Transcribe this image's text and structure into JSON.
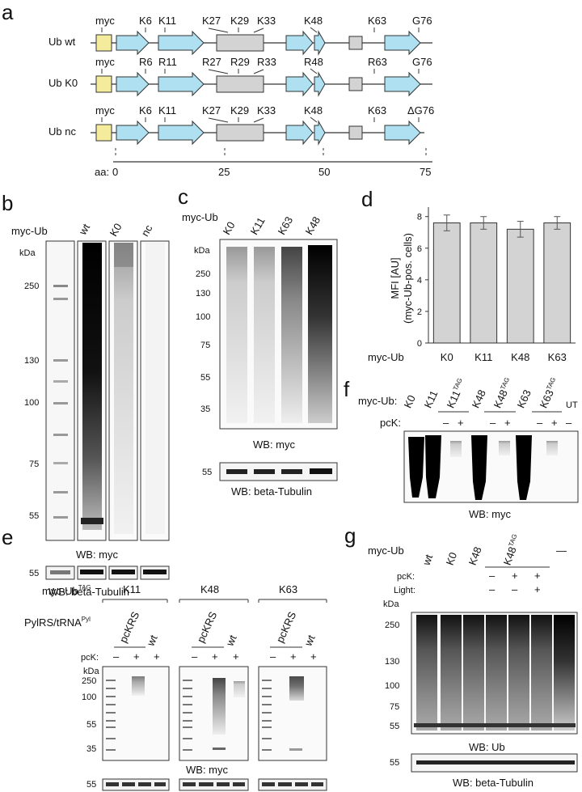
{
  "panels": {
    "a": {
      "letter": "a",
      "rows": [
        {
          "name": "Ub wt",
          "labels": [
            "myc",
            "K6",
            "K11",
            "K27",
            "K29",
            "K33",
            "K48",
            "K63",
            "G76"
          ]
        },
        {
          "name": "Ub K0",
          "labels": [
            "myc",
            "R6",
            "R11",
            "R27",
            "R29",
            "R33",
            "R48",
            "R63",
            "G76"
          ]
        },
        {
          "name": "Ub nc",
          "labels": [
            "myc",
            "K6",
            "K11",
            "K27",
            "K29",
            "K33",
            "K48",
            "K63",
            "ΔG76"
          ]
        }
      ],
      "aa_label": "aa:",
      "aa_ticks": [
        "0",
        "25",
        "50",
        "75"
      ]
    },
    "b": {
      "letter": "b",
      "myc_ub_label": "myc-Ub",
      "lanes": [
        "wt",
        "K0",
        "nc"
      ],
      "kda": "kDa",
      "markers": [
        "250",
        "130",
        "100",
        "75",
        "55"
      ],
      "wb1": "WB: myc",
      "tub_marker": "55",
      "wb2": "WB: beta-Tubulin"
    },
    "c": {
      "letter": "c",
      "myc_ub_label": "myc-Ub",
      "lanes": [
        "K0",
        "K11",
        "K63",
        "K48"
      ],
      "kda": "kDa",
      "markers": [
        "250",
        "130",
        "100",
        "75",
        "55",
        "35"
      ],
      "wb1": "WB: myc",
      "tub_marker": "55",
      "wb2": "WB: beta-Tubulin"
    },
    "d": {
      "letter": "d",
      "ylabel1": "MFI [AU]",
      "ylabel2": "(myc-Ub-pos. cells)",
      "xlabel": "myc-Ub",
      "yticks": [
        "0",
        "2",
        "4",
        "6",
        "8"
      ]
    },
    "e": {
      "letter": "e",
      "myc_ubtag": "myc-Ub",
      "tag": "TAG",
      "pylrs": "PylRS/tRNA",
      "pyl": "Pyl",
      "groups": [
        "K11",
        "K48",
        "K63"
      ],
      "pckrs": "pcKRS",
      "wt": "wt",
      "pck": "pcK:",
      "minus": "–",
      "plus": "+",
      "kda": "kDa",
      "markers": [
        "250",
        "100",
        "55",
        "35"
      ],
      "wb1": "WB: myc",
      "tub_marker": "55",
      "wb2": "WB: beta-Tubulin"
    },
    "f": {
      "letter": "f",
      "myc_ub": "myc-Ub:",
      "lanes": [
        "K0",
        "K11",
        "K11",
        "K48",
        "K48",
        "K63",
        "K63",
        "UT"
      ],
      "tag": "TAG",
      "pck": "pcK:",
      "minus": "–",
      "plus": "+",
      "wb": "WB: myc"
    },
    "g": {
      "letter": "g",
      "myc_ub": "myc-Ub",
      "lanes": [
        "wt",
        "K0",
        "K48",
        "K48",
        "—"
      ],
      "tag": "TAG",
      "pck": "pcK:",
      "light": "Light:",
      "minus": "–",
      "plus": "+",
      "kda": "kDa",
      "markers": [
        "250",
        "130",
        "100",
        "75",
        "55"
      ],
      "wb1": "WB: Ub",
      "tub_marker": "55",
      "wb2": "WB: beta-Tubulin"
    }
  },
  "chart_data": {
    "type": "bar",
    "categories": [
      "K0",
      "K11",
      "K48",
      "K63"
    ],
    "values": [
      7.6,
      7.6,
      7.2,
      7.6
    ],
    "errors": [
      0.5,
      0.4,
      0.5,
      0.4
    ],
    "ylabel": "MFI [AU] (myc-Ub-pos. cells)",
    "xlabel": "myc-Ub",
    "ylim": [
      0,
      8.6
    ],
    "bar_color": "#d3d3d3"
  }
}
